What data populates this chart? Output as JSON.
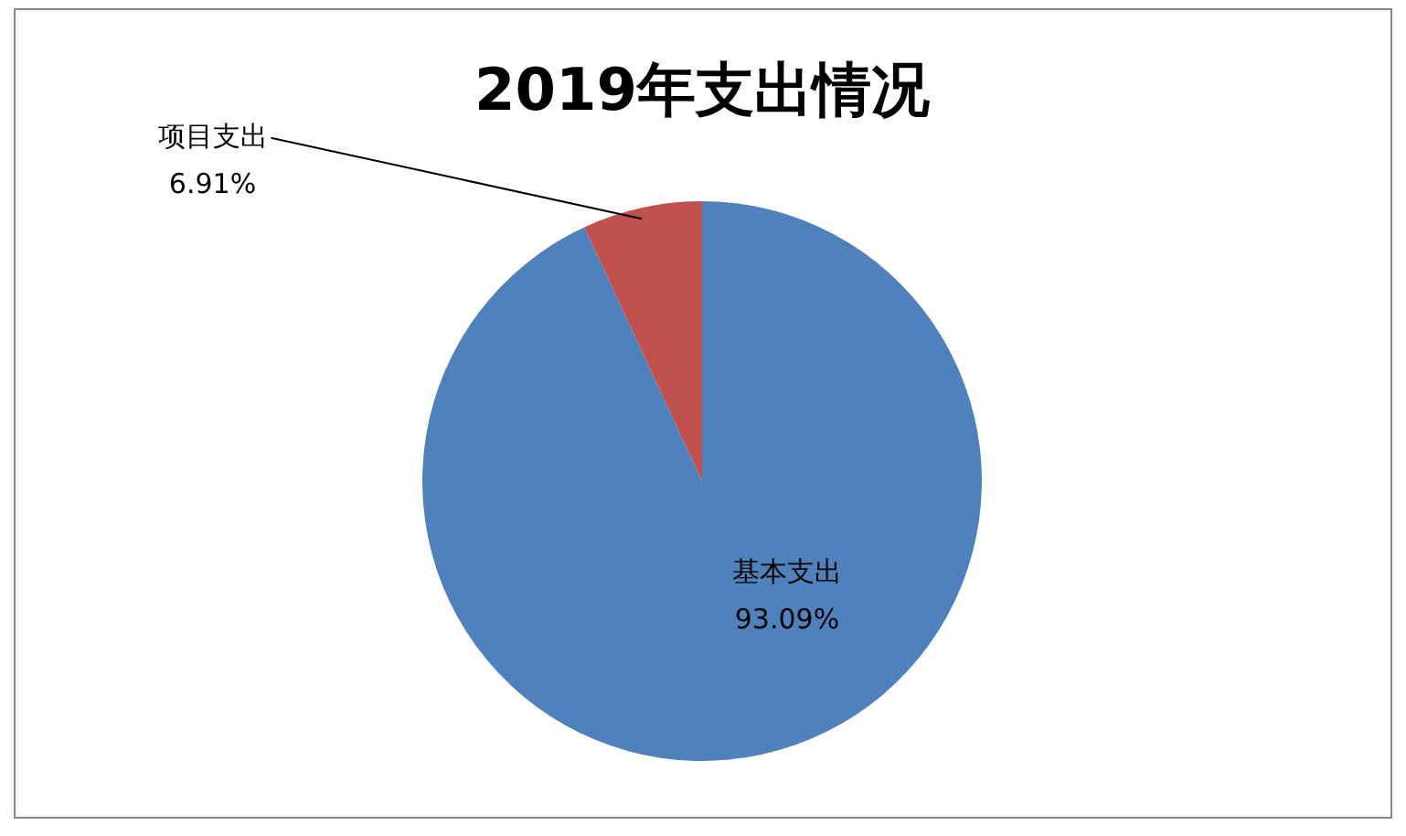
{
  "chart_data": {
    "type": "pie",
    "title": "2019年支出情况",
    "categories": [
      "基本支出",
      "项目支出"
    ],
    "values": [
      93.09,
      6.91
    ],
    "value_labels": [
      "93.09%",
      "6.91%"
    ],
    "colors": [
      "#4f81bd",
      "#c0504d"
    ]
  }
}
